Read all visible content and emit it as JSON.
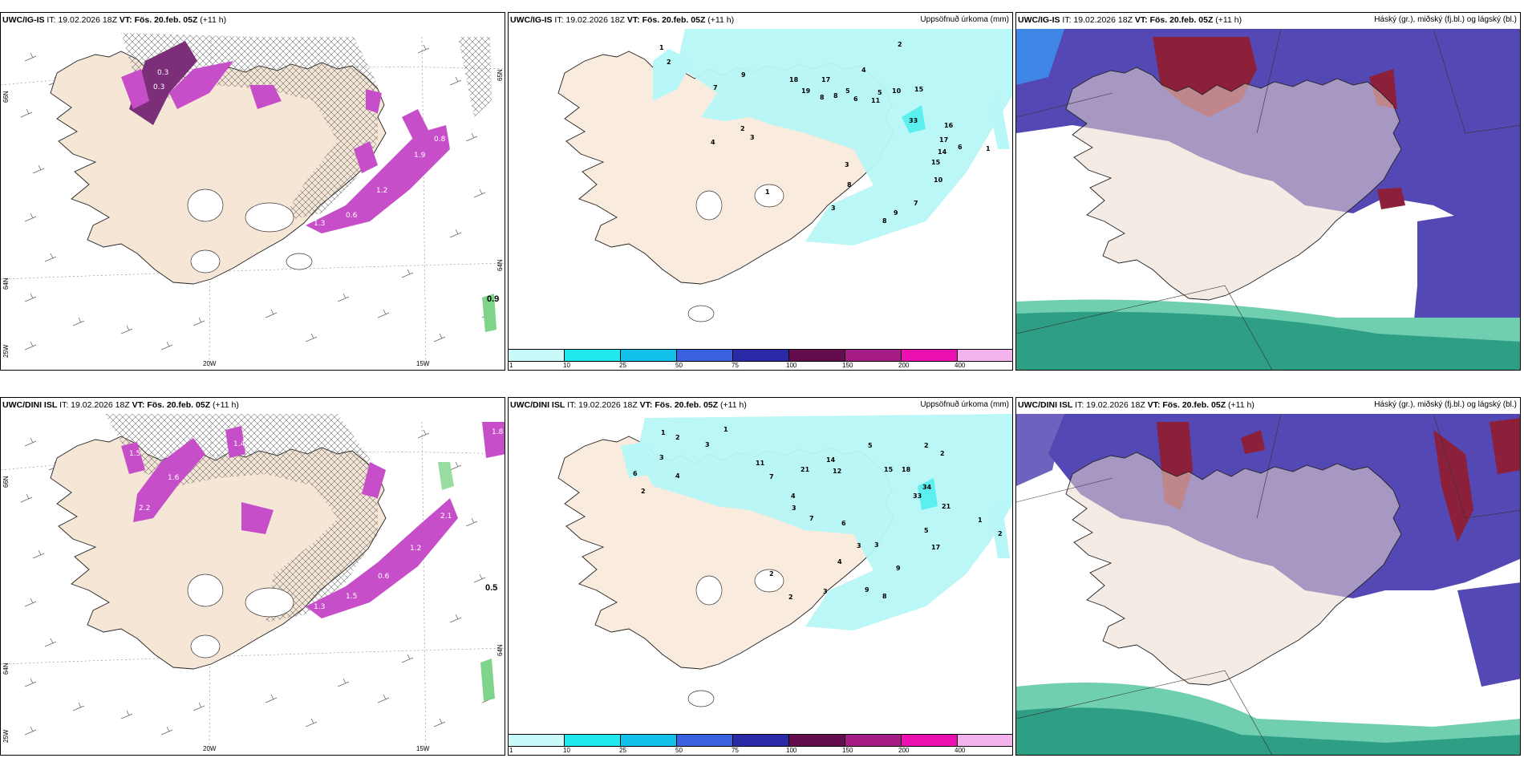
{
  "palette": {
    "land": "#f5e6d6",
    "snow_land": "#e9ddd2",
    "sea": "#ffffff",
    "coast": "#222222",
    "precip_light": "#b7f7f7",
    "precip_med": "#5cefef",
    "snow_purple": "#c64fc9",
    "snow_dark": "#7a2f78",
    "cloud_high": "#8c1f3a",
    "cloud_mid": "#5448b4",
    "cloud_low": "#2e9e84",
    "cloud_low_light": "#6fcfb0"
  },
  "panels": {
    "top_left": {
      "model": "UWC/IG-IS",
      "it": "IT: 19.02.2026 18Z",
      "vt": "VT: Fös. 20.feb. 05Z",
      "lead": "(+11 h)",
      "lat_labels": [
        "66N",
        "64N",
        "25W"
      ],
      "lat_labels_right": [
        "65N",
        "64N"
      ],
      "lon_labels": [
        "20W",
        "15W"
      ],
      "max_value": "0.9",
      "snow_values": [
        "0.3",
        "0.3",
        "1.3",
        "0.6",
        "1.2",
        "1.9",
        "0.8"
      ]
    },
    "top_mid": {
      "model": "UWC/IG-IS",
      "it": "IT: 19.02.2026 18Z",
      "vt": "VT: Fös. 20.feb. 05Z",
      "lead": "(+11 h)",
      "title_right": "Uppsöfnuð úrkoma (mm)",
      "station_values": [
        "1",
        "2",
        "9",
        "7",
        "18",
        "17",
        "4",
        "2",
        "8",
        "5",
        "19",
        "8",
        "6",
        "5",
        "11",
        "10",
        "15",
        "33",
        "16",
        "17",
        "14",
        "15",
        "6",
        "3",
        "2",
        "3",
        "8",
        "10",
        "7",
        "9",
        "8",
        "3",
        "4",
        "1",
        "1"
      ]
    },
    "top_right": {
      "model": "UWC/IG-IS",
      "it": "IT: 19.02.2026 18Z",
      "vt": "VT: Fös. 20.feb. 05Z",
      "lead": "(+11 h)",
      "title_right": "Háský (gr.), miðský (fj.bl.) og lágský (bl.)"
    },
    "bottom_left": {
      "model": "UWC/DINI ISL",
      "it": "IT: 19.02.2026 18Z",
      "vt": "VT: Fös. 20.feb. 05Z",
      "lead": "(+11 h)",
      "lat_labels": [
        "66N",
        "64N",
        "25W"
      ],
      "lat_labels_right": [
        "64N"
      ],
      "lon_labels": [
        "20W",
        "15W"
      ],
      "max_value": "0.5",
      "edge_value": "1.8",
      "snow_values": [
        "1.5",
        "1.6",
        "2.2",
        "1.4",
        "1.3",
        "1.5",
        "0.6",
        "1.2",
        "2.1"
      ]
    },
    "bottom_mid": {
      "model": "UWC/DINI ISL",
      "it": "IT: 19.02.2026 18Z",
      "vt": "VT: Fös. 20.feb. 05Z",
      "lead": "(+11 h)",
      "title_right": "Uppsöfnuð úrkoma (mm)",
      "station_values": [
        "1",
        "2",
        "1",
        "3",
        "3",
        "2",
        "4",
        "6",
        "11",
        "7",
        "21",
        "14",
        "12",
        "5",
        "15",
        "18",
        "2",
        "2",
        "34",
        "33",
        "21",
        "5",
        "17",
        "1",
        "2",
        "3",
        "4",
        "7",
        "6",
        "3",
        "4",
        "3",
        "9",
        "8",
        "2",
        "2",
        "3",
        "9"
      ]
    },
    "bottom_right": {
      "model": "UWC/DINI ISL",
      "it": "IT: 19.02.2026 18Z",
      "vt": "VT: Fös. 20.feb. 05Z",
      "lead": "(+11 h)",
      "title_right": "Háský (gr.), miðský (fj.bl.) og lágský (bl.)"
    }
  },
  "colorbar": {
    "labels": [
      "1",
      "10",
      "25",
      "50",
      "75",
      "100",
      "150",
      "200",
      "400"
    ],
    "colors": [
      "#c8fafa",
      "#1fe9ee",
      "#11c1ea",
      "#3a62e0",
      "#2a2aa8",
      "#650c4f",
      "#a51c86",
      "#ea11b0",
      "#f3b3ef"
    ]
  }
}
